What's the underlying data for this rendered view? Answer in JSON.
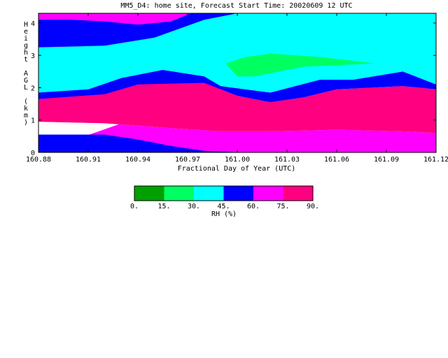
{
  "chart_data": {
    "type": "filled-contour",
    "title": "MM5_D4: home site,  Forecast Start Time: 20020609 12 UTC",
    "xlabel": "Fractional Day of Year (UTC)",
    "ylabel": "Height AGL (km)",
    "xlim": [
      160.88,
      161.12
    ],
    "ylim": [
      0,
      4.3
    ],
    "x_ticks": [
      "160.88",
      "160.91",
      "160.94",
      "160.97",
      "161.00",
      "161.03",
      "161.06",
      "161.09",
      "161.12"
    ],
    "y_ticks": [
      "0",
      "1",
      "2",
      "3",
      "4"
    ],
    "legend_title": "RH (%)",
    "legend_levels": [
      "0.",
      "15.",
      "30.",
      "45.",
      "60.",
      "75.",
      "90."
    ],
    "legend_colors": [
      "#00a000",
      "#00ff60",
      "#00ffff",
      "#0000ff",
      "#ff00ff",
      "#ff0080"
    ],
    "bands": [
      {
        "range": "60-75",
        "color": "#ff00ff",
        "polygon": [
          [
            160.88,
            0.0
          ],
          [
            161.12,
            0.0
          ],
          [
            161.12,
            0.6
          ],
          [
            161.1,
            0.65
          ],
          [
            161.06,
            0.7
          ],
          [
            161.02,
            0.65
          ],
          [
            160.99,
            0.65
          ],
          [
            160.96,
            0.75
          ],
          [
            160.92,
            0.9
          ],
          [
            160.88,
            0.95
          ],
          [
            160.88,
            4.3
          ],
          [
            161.12,
            4.3
          ]
        ]
      },
      {
        "range": "45-60 lower",
        "color": "#0000ff",
        "polygon": [
          [
            160.88,
            0.0
          ],
          [
            161.003,
            0.0
          ],
          [
            160.98,
            0.05
          ],
          [
            160.96,
            0.2
          ],
          [
            160.94,
            0.4
          ],
          [
            160.92,
            0.55
          ],
          [
            160.88,
            0.55
          ]
        ]
      },
      {
        "range": "75-90",
        "color": "#ff0080",
        "polygon": [
          [
            160.88,
            1.65
          ],
          [
            160.92,
            1.8
          ],
          [
            160.94,
            2.1
          ],
          [
            160.98,
            2.15
          ],
          [
            161.0,
            1.75
          ],
          [
            161.02,
            1.55
          ],
          [
            161.04,
            1.7
          ],
          [
            161.06,
            1.95
          ],
          [
            161.1,
            2.05
          ],
          [
            161.12,
            1.95
          ],
          [
            161.12,
            0.6
          ],
          [
            161.1,
            0.65
          ],
          [
            161.06,
            0.7
          ],
          [
            161.02,
            0.65
          ],
          [
            160.99,
            0.65
          ],
          [
            160.96,
            0.75
          ],
          [
            160.92,
            0.9
          ],
          [
            160.88,
            0.95
          ]
        ]
      },
      {
        "range": "45-60 middle",
        "color": "#0000ff",
        "polygon": [
          [
            160.88,
            1.65
          ],
          [
            160.92,
            1.8
          ],
          [
            160.94,
            2.1
          ],
          [
            160.98,
            2.15
          ],
          [
            161.0,
            1.75
          ],
          [
            161.02,
            1.55
          ],
          [
            161.04,
            1.7
          ],
          [
            161.06,
            1.95
          ],
          [
            161.1,
            2.05
          ],
          [
            161.12,
            1.95
          ],
          [
            161.12,
            2.1
          ],
          [
            161.1,
            2.5
          ],
          [
            161.07,
            2.25
          ],
          [
            161.05,
            2.25
          ],
          [
            161.02,
            1.85
          ],
          [
            160.99,
            2.05
          ],
          [
            160.98,
            2.35
          ],
          [
            160.955,
            2.55
          ],
          [
            160.93,
            2.3
          ],
          [
            160.91,
            1.95
          ],
          [
            160.88,
            1.85
          ]
        ]
      },
      {
        "range": "30-45",
        "color": "#00ffff",
        "polygon": [
          [
            160.88,
            1.85
          ],
          [
            160.91,
            1.95
          ],
          [
            160.93,
            2.3
          ],
          [
            160.955,
            2.55
          ],
          [
            160.98,
            2.35
          ],
          [
            160.99,
            2.05
          ],
          [
            161.02,
            1.85
          ],
          [
            161.05,
            2.25
          ],
          [
            161.07,
            2.25
          ],
          [
            161.1,
            2.5
          ],
          [
            161.12,
            2.1
          ],
          [
            161.12,
            4.3
          ],
          [
            161.0,
            4.3
          ],
          [
            160.98,
            4.1
          ],
          [
            160.95,
            3.55
          ],
          [
            160.92,
            3.3
          ],
          [
            160.88,
            3.25
          ]
        ]
      },
      {
        "range": "45-60 upper",
        "color": "#0000ff",
        "polygon": [
          [
            160.88,
            3.25
          ],
          [
            160.92,
            3.3
          ],
          [
            160.95,
            3.55
          ],
          [
            160.98,
            4.1
          ],
          [
            161.0,
            4.3
          ],
          [
            160.972,
            4.3
          ],
          [
            160.96,
            4.05
          ],
          [
            160.94,
            3.95
          ],
          [
            160.92,
            4.05
          ],
          [
            160.9,
            4.1
          ],
          [
            160.88,
            4.1
          ]
        ]
      },
      {
        "range": "15-30",
        "color": "#00ff60",
        "polygon": [
          [
            160.993,
            2.75
          ],
          [
            161.005,
            2.95
          ],
          [
            161.02,
            3.05
          ],
          [
            161.05,
            2.95
          ],
          [
            161.083,
            2.75
          ],
          [
            161.04,
            2.65
          ],
          [
            161.01,
            2.35
          ],
          [
            161.0,
            2.35
          ]
        ]
      }
    ]
  }
}
